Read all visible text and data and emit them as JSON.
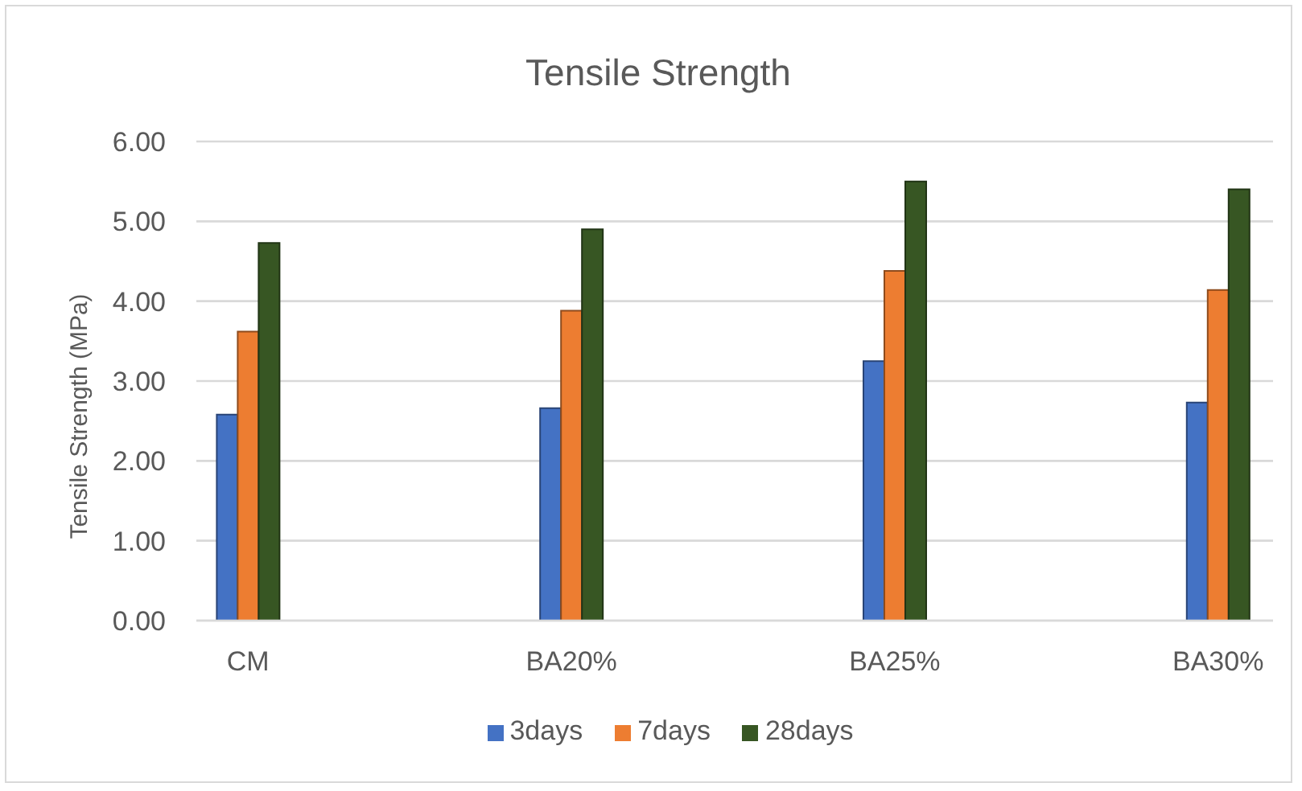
{
  "chart_data": {
    "type": "bar",
    "title": "Tensile Strength",
    "ylabel": "Tensile Strength (MPa)",
    "categories": [
      "CM",
      "BA20%",
      "BA25%",
      "BA30%"
    ],
    "series": [
      {
        "name": "3days",
        "color": "#4472c4",
        "values": [
          2.58,
          2.66,
          3.25,
          2.73
        ]
      },
      {
        "name": "7days",
        "color": "#ed7d31",
        "values": [
          3.62,
          3.88,
          4.38,
          4.14
        ]
      },
      {
        "name": "28days",
        "color": "#375623",
        "values": [
          4.73,
          4.9,
          5.5,
          5.4
        ]
      }
    ],
    "ylim": [
      0,
      6
    ],
    "yticks": [
      {
        "value": 0,
        "label": "0.00"
      },
      {
        "value": 1,
        "label": "1.00"
      },
      {
        "value": 2,
        "label": "2.00"
      },
      {
        "value": 3,
        "label": "3.00"
      },
      {
        "value": 4,
        "label": "4.00"
      },
      {
        "value": 5,
        "label": "5.00"
      },
      {
        "value": 6,
        "label": "6.00"
      }
    ],
    "grid": "y",
    "legend": "bottom"
  }
}
